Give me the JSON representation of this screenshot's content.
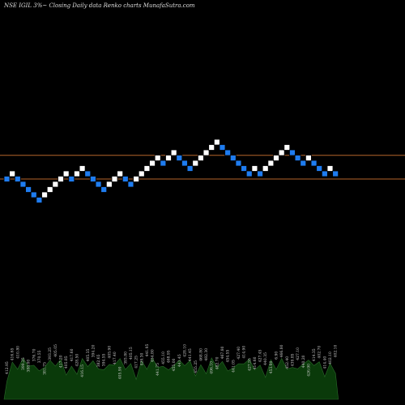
{
  "chart_data": {
    "type": "renko",
    "title": "NSE IGIL 3%~  Closing Daily data  Renko  charts MunafaSutra.com",
    "grid": false,
    "colors": {
      "background": "#000000",
      "up_brick": "#ffffff",
      "down_brick": "#1e7cf0",
      "brick_outline": "#000000",
      "reference_line": "#b5652a",
      "volume_fill": "#0a3a0a",
      "volume_stroke": "#2a6a2a"
    },
    "reference_lines": [
      {
        "label": "upper",
        "level": 4.5
      },
      {
        "label": "lower",
        "level": 0
      }
    ],
    "bricks": [
      {
        "dir": "down",
        "level": 0
      },
      {
        "dir": "up",
        "level": 1
      },
      {
        "dir": "down",
        "level": 0
      },
      {
        "dir": "down",
        "level": -1
      },
      {
        "dir": "down",
        "level": -2
      },
      {
        "dir": "down",
        "level": -3
      },
      {
        "dir": "down",
        "level": -4
      },
      {
        "dir": "up",
        "level": -3
      },
      {
        "dir": "up",
        "level": -2
      },
      {
        "dir": "up",
        "level": -1
      },
      {
        "dir": "up",
        "level": 0
      },
      {
        "dir": "up",
        "level": 1
      },
      {
        "dir": "down",
        "level": 0
      },
      {
        "dir": "up",
        "level": 1
      },
      {
        "dir": "up",
        "level": 2
      },
      {
        "dir": "down",
        "level": 1
      },
      {
        "dir": "down",
        "level": 0
      },
      {
        "dir": "down",
        "level": -1
      },
      {
        "dir": "down",
        "level": -2
      },
      {
        "dir": "up",
        "level": -1
      },
      {
        "dir": "up",
        "level": 0
      },
      {
        "dir": "up",
        "level": 1
      },
      {
        "dir": "down",
        "level": 0
      },
      {
        "dir": "down",
        "level": -1
      },
      {
        "dir": "up",
        "level": 0
      },
      {
        "dir": "up",
        "level": 1
      },
      {
        "dir": "up",
        "level": 2
      },
      {
        "dir": "up",
        "level": 3
      },
      {
        "dir": "up",
        "level": 4
      },
      {
        "dir": "down",
        "level": 3
      },
      {
        "dir": "up",
        "level": 4
      },
      {
        "dir": "up",
        "level": 5
      },
      {
        "dir": "down",
        "level": 4
      },
      {
        "dir": "down",
        "level": 3
      },
      {
        "dir": "down",
        "level": 2
      },
      {
        "dir": "up",
        "level": 3
      },
      {
        "dir": "up",
        "level": 4
      },
      {
        "dir": "up",
        "level": 5
      },
      {
        "dir": "up",
        "level": 6
      },
      {
        "dir": "up",
        "level": 7
      },
      {
        "dir": "down",
        "level": 6
      },
      {
        "dir": "down",
        "level": 5
      },
      {
        "dir": "down",
        "level": 4
      },
      {
        "dir": "down",
        "level": 3
      },
      {
        "dir": "down",
        "level": 2
      },
      {
        "dir": "down",
        "level": 1
      },
      {
        "dir": "up",
        "level": 2
      },
      {
        "dir": "down",
        "level": 1
      },
      {
        "dir": "up",
        "level": 2
      },
      {
        "dir": "up",
        "level": 3
      },
      {
        "dir": "up",
        "level": 4
      },
      {
        "dir": "up",
        "level": 5
      },
      {
        "dir": "up",
        "level": 6
      },
      {
        "dir": "down",
        "level": 5
      },
      {
        "dir": "down",
        "level": 4
      },
      {
        "dir": "down",
        "level": 3
      },
      {
        "dir": "up",
        "level": 4
      },
      {
        "dir": "down",
        "level": 3
      },
      {
        "dir": "down",
        "level": 2
      },
      {
        "dir": "down",
        "level": 1
      },
      {
        "dir": "up",
        "level": 2
      },
      {
        "dir": "down",
        "level": 1
      }
    ],
    "volume_labels": [
      "412.95",
      "416.65",
      "410.80",
      "399.25",
      "388.00",
      "376.70",
      "370.55",
      "381.75",
      "393.25",
      "405.05",
      "417.20",
      "405.85",
      "417.60",
      "428.50",
      "416.15",
      "405.35",
      "394.20",
      "382.65",
      "394.55",
      "405.90",
      "417.40",
      "405.90",
      "393.80",
      "405.15",
      "417.25",
      "429.30",
      "441.95",
      "454.80",
      "441.75",
      "455.10",
      "468.95",
      "455.00",
      "441.45",
      "428.10",
      "441.45",
      "455.25",
      "468.80",
      "482.30",
      "496.10",
      "482.70",
      "467.80",
      "454.55",
      "441.05",
      "427.40",
      "414.90",
      "427.55",
      "414.60",
      "427.45",
      "440.35",
      "453.60",
      "6.90",
      "466.80",
      "452.40",
      "439.85",
      "427.10",
      "440.20",
      "426.90",
      "414.35",
      "402.70",
      "414.40",
      "402.10",
      "402.10"
    ]
  }
}
